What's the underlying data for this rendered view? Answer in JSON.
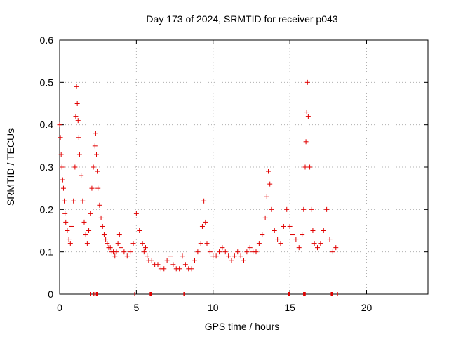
{
  "chart_data": {
    "type": "scatter",
    "title": "Day 173 of 2024, SRMTID for receiver p043",
    "xlabel": "GPS time / hours",
    "ylabel": "SRMTID / TECUs",
    "xlim": [
      0,
      24
    ],
    "ylim": [
      0,
      0.6
    ],
    "xticks": [
      0,
      5,
      10,
      15,
      20
    ],
    "yticks": [
      0,
      0.1,
      0.2,
      0.3,
      0.4,
      0.5,
      0.6
    ],
    "x_tick_labels": [
      "0",
      "5",
      "10",
      "15",
      "20"
    ],
    "y_tick_labels": [
      "0",
      "0.1",
      "0.2",
      "0.3",
      "0.4",
      "0.5",
      "0.6"
    ],
    "grid": true,
    "marker": "+",
    "color": "#e00000",
    "series": [
      {
        "name": "SRMTID",
        "x": [
          0.0,
          0.05,
          0.1,
          0.15,
          0.2,
          0.25,
          0.3,
          0.35,
          0.4,
          0.5,
          0.6,
          0.7,
          0.8,
          0.9,
          1.0,
          1.05,
          1.1,
          1.15,
          1.2,
          1.25,
          1.3,
          1.4,
          1.5,
          1.6,
          1.7,
          1.8,
          1.9,
          2.0,
          2.1,
          2.2,
          2.3,
          2.35,
          2.4,
          2.45,
          2.5,
          2.6,
          2.7,
          2.8,
          2.9,
          3.0,
          3.1,
          3.2,
          3.3,
          3.4,
          3.5,
          3.6,
          3.7,
          3.8,
          3.9,
          4.0,
          4.2,
          4.4,
          4.6,
          4.8,
          5.0,
          5.2,
          5.4,
          5.5,
          5.6,
          5.7,
          5.8,
          6.0,
          6.2,
          6.4,
          6.6,
          6.8,
          7.0,
          7.2,
          7.4,
          7.6,
          7.8,
          8.0,
          8.2,
          8.4,
          8.6,
          8.8,
          9.0,
          9.2,
          9.3,
          9.4,
          9.5,
          9.6,
          9.8,
          10.0,
          10.2,
          10.4,
          10.6,
          10.8,
          11.0,
          11.2,
          11.4,
          11.6,
          11.8,
          12.0,
          12.2,
          12.4,
          12.6,
          12.8,
          13.0,
          13.2,
          13.4,
          13.5,
          13.6,
          13.7,
          13.8,
          14.0,
          14.2,
          14.4,
          14.6,
          14.8,
          15.0,
          15.2,
          15.4,
          15.6,
          15.8,
          15.9,
          16.0,
          16.05,
          16.1,
          16.15,
          16.2,
          16.3,
          16.4,
          16.5,
          16.6,
          16.8,
          17.0,
          17.2,
          17.4,
          17.6,
          17.8,
          18.0
        ],
        "y": [
          0.4,
          0.37,
          0.33,
          0.3,
          0.27,
          0.25,
          0.22,
          0.19,
          0.17,
          0.15,
          0.13,
          0.12,
          0.16,
          0.22,
          0.3,
          0.42,
          0.49,
          0.45,
          0.41,
          0.37,
          0.33,
          0.28,
          0.22,
          0.17,
          0.14,
          0.12,
          0.15,
          0.19,
          0.25,
          0.3,
          0.35,
          0.38,
          0.33,
          0.29,
          0.25,
          0.21,
          0.18,
          0.16,
          0.14,
          0.13,
          0.12,
          0.11,
          0.11,
          0.1,
          0.1,
          0.09,
          0.1,
          0.12,
          0.14,
          0.11,
          0.1,
          0.09,
          0.1,
          0.12,
          0.19,
          0.15,
          0.12,
          0.1,
          0.11,
          0.09,
          0.08,
          0.08,
          0.07,
          0.07,
          0.06,
          0.06,
          0.08,
          0.09,
          0.07,
          0.06,
          0.06,
          0.09,
          0.07,
          0.06,
          0.06,
          0.08,
          0.1,
          0.12,
          0.16,
          0.22,
          0.17,
          0.12,
          0.1,
          0.09,
          0.09,
          0.1,
          0.11,
          0.1,
          0.09,
          0.08,
          0.09,
          0.1,
          0.09,
          0.08,
          0.1,
          0.11,
          0.1,
          0.1,
          0.12,
          0.14,
          0.18,
          0.23,
          0.29,
          0.26,
          0.2,
          0.15,
          0.13,
          0.12,
          0.16,
          0.2,
          0.16,
          0.14,
          0.13,
          0.11,
          0.14,
          0.2,
          0.3,
          0.36,
          0.43,
          0.5,
          0.42,
          0.3,
          0.2,
          0.15,
          0.12,
          0.11,
          0.12,
          0.15,
          0.2,
          0.13,
          0.1,
          0.11
        ]
      }
    ],
    "rug_x": [
      2.0,
      2.2,
      2.3,
      2.4,
      2.45,
      4.9,
      5.9,
      5.95,
      6.0,
      8.1,
      14.9,
      14.95,
      15.0,
      15.9,
      15.95,
      16.0,
      17.7,
      17.75,
      18.1
    ]
  }
}
